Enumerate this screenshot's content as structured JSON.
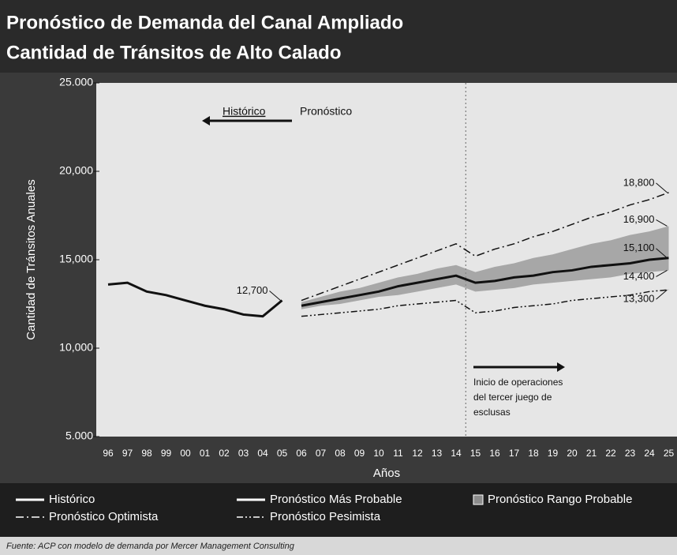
{
  "chart_data": {
    "type": "line",
    "title": [
      "Pronóstico de Demanda del Canal Ampliado",
      "Cantidad de Tránsitos de Alto Calado"
    ],
    "x_label": "Años",
    "y_label": "Cantidad de Tránsitos Anuales",
    "categories": [
      "96",
      "97",
      "98",
      "99",
      "00",
      "01",
      "02",
      "03",
      "04",
      "05",
      "06",
      "07",
      "08",
      "09",
      "10",
      "11",
      "12",
      "13",
      "14",
      "15",
      "16",
      "17",
      "18",
      "19",
      "20",
      "21",
      "22",
      "23",
      "24",
      "25"
    ],
    "ylim": [
      5000,
      25000
    ],
    "yticks": [
      {
        "value": 25000,
        "label": "25.000"
      },
      {
        "value": 20000,
        "label": "20,000"
      },
      {
        "value": 15000,
        "label": "15,000"
      },
      {
        "value": 10000,
        "label": "10,000"
      },
      {
        "value": 5000,
        "label": "5.000"
      }
    ],
    "series": [
      {
        "name": "Histórico",
        "color": "#111111",
        "style": "solid",
        "values": [
          13600,
          13700,
          13200,
          13000,
          12700,
          12400,
          12200,
          11900,
          11800,
          12700,
          null,
          null,
          null,
          null,
          null,
          null,
          null,
          null,
          null,
          null,
          null,
          null,
          null,
          null,
          null,
          null,
          null,
          null,
          null,
          null
        ],
        "value_labels": [
          null,
          null,
          null,
          null,
          null,
          null,
          null,
          null,
          null,
          "12,700",
          null,
          null,
          null,
          null,
          null,
          null,
          null,
          null,
          null,
          null,
          null,
          null,
          null,
          null,
          null,
          null,
          null,
          null,
          null,
          null
        ]
      },
      {
        "name": "Pronóstico Más Probable",
        "color": "#111111",
        "style": "solid",
        "values": [
          null,
          null,
          null,
          null,
          null,
          null,
          null,
          null,
          null,
          null,
          12400,
          12600,
          12800,
          13000,
          13200,
          13500,
          13700,
          13900,
          14100,
          13700,
          13800,
          14000,
          14100,
          14300,
          14400,
          14600,
          14700,
          14800,
          15000,
          15100
        ],
        "value_labels": [
          null,
          null,
          null,
          null,
          null,
          null,
          null,
          null,
          null,
          null,
          null,
          null,
          null,
          null,
          null,
          null,
          null,
          null,
          null,
          null,
          null,
          null,
          null,
          null,
          null,
          null,
          null,
          null,
          null,
          "15,100"
        ]
      },
      {
        "name": "Pronóstico Optimista",
        "color": "#111111",
        "style": "dashdot",
        "values": [
          null,
          null,
          null,
          null,
          null,
          null,
          null,
          null,
          null,
          null,
          12700,
          13100,
          13500,
          13900,
          14300,
          14700,
          15100,
          15500,
          15900,
          15200,
          15600,
          15900,
          16300,
          16600,
          17000,
          17400,
          17700,
          18100,
          18400,
          18800
        ],
        "value_labels": [
          null,
          null,
          null,
          null,
          null,
          null,
          null,
          null,
          null,
          null,
          null,
          null,
          null,
          null,
          null,
          null,
          null,
          null,
          null,
          null,
          null,
          null,
          null,
          null,
          null,
          null,
          null,
          null,
          null,
          "18,800"
        ]
      },
      {
        "name": "Pronóstico Pesimista",
        "color": "#111111",
        "style": "dashdotdot",
        "values": [
          null,
          null,
          null,
          null,
          null,
          null,
          null,
          null,
          null,
          null,
          11800,
          11900,
          12000,
          12100,
          12200,
          12400,
          12500,
          12600,
          12700,
          12000,
          12100,
          12300,
          12400,
          12500,
          12700,
          12800,
          12900,
          13000,
          13200,
          13300
        ],
        "value_labels": [
          null,
          null,
          null,
          null,
          null,
          null,
          null,
          null,
          null,
          null,
          null,
          null,
          null,
          null,
          null,
          null,
          null,
          null,
          null,
          null,
          null,
          null,
          null,
          null,
          null,
          null,
          null,
          null,
          null,
          "13,300"
        ]
      }
    ],
    "range": {
      "name": "Pronóstico Rango Probable",
      "color": "#8c8c8c",
      "high": [
        null,
        null,
        null,
        null,
        null,
        null,
        null,
        null,
        null,
        null,
        12600,
        12900,
        13200,
        13400,
        13700,
        14000,
        14200,
        14500,
        14700,
        14300,
        14600,
        14800,
        15100,
        15300,
        15600,
        15900,
        16100,
        16400,
        16600,
        16900
      ],
      "low": [
        null,
        null,
        null,
        null,
        null,
        null,
        null,
        null,
        null,
        null,
        12200,
        12400,
        12500,
        12700,
        12900,
        13000,
        13200,
        13400,
        13600,
        13200,
        13300,
        13400,
        13600,
        13700,
        13800,
        13900,
        14000,
        14200,
        14300,
        14400
      ],
      "high_labels": [
        null,
        null,
        null,
        null,
        null,
        null,
        null,
        null,
        null,
        null,
        null,
        null,
        null,
        null,
        null,
        null,
        null,
        null,
        null,
        null,
        null,
        null,
        null,
        null,
        null,
        null,
        null,
        null,
        null,
        "16,900"
      ],
      "low_labels": [
        null,
        null,
        null,
        null,
        null,
        null,
        null,
        null,
        null,
        null,
        null,
        null,
        null,
        null,
        null,
        null,
        null,
        null,
        null,
        null,
        null,
        null,
        null,
        null,
        null,
        null,
        null,
        null,
        null,
        "14,400"
      ]
    },
    "annotations": {
      "historico": "Histórico",
      "pronostico": "Pronóstico",
      "inicio": [
        "Inicio de operaciones",
        "del tercer juego de",
        "esclusas"
      ]
    },
    "source": "Fuente: ACP con modelo de demanda por Mercer Management Consulting"
  }
}
